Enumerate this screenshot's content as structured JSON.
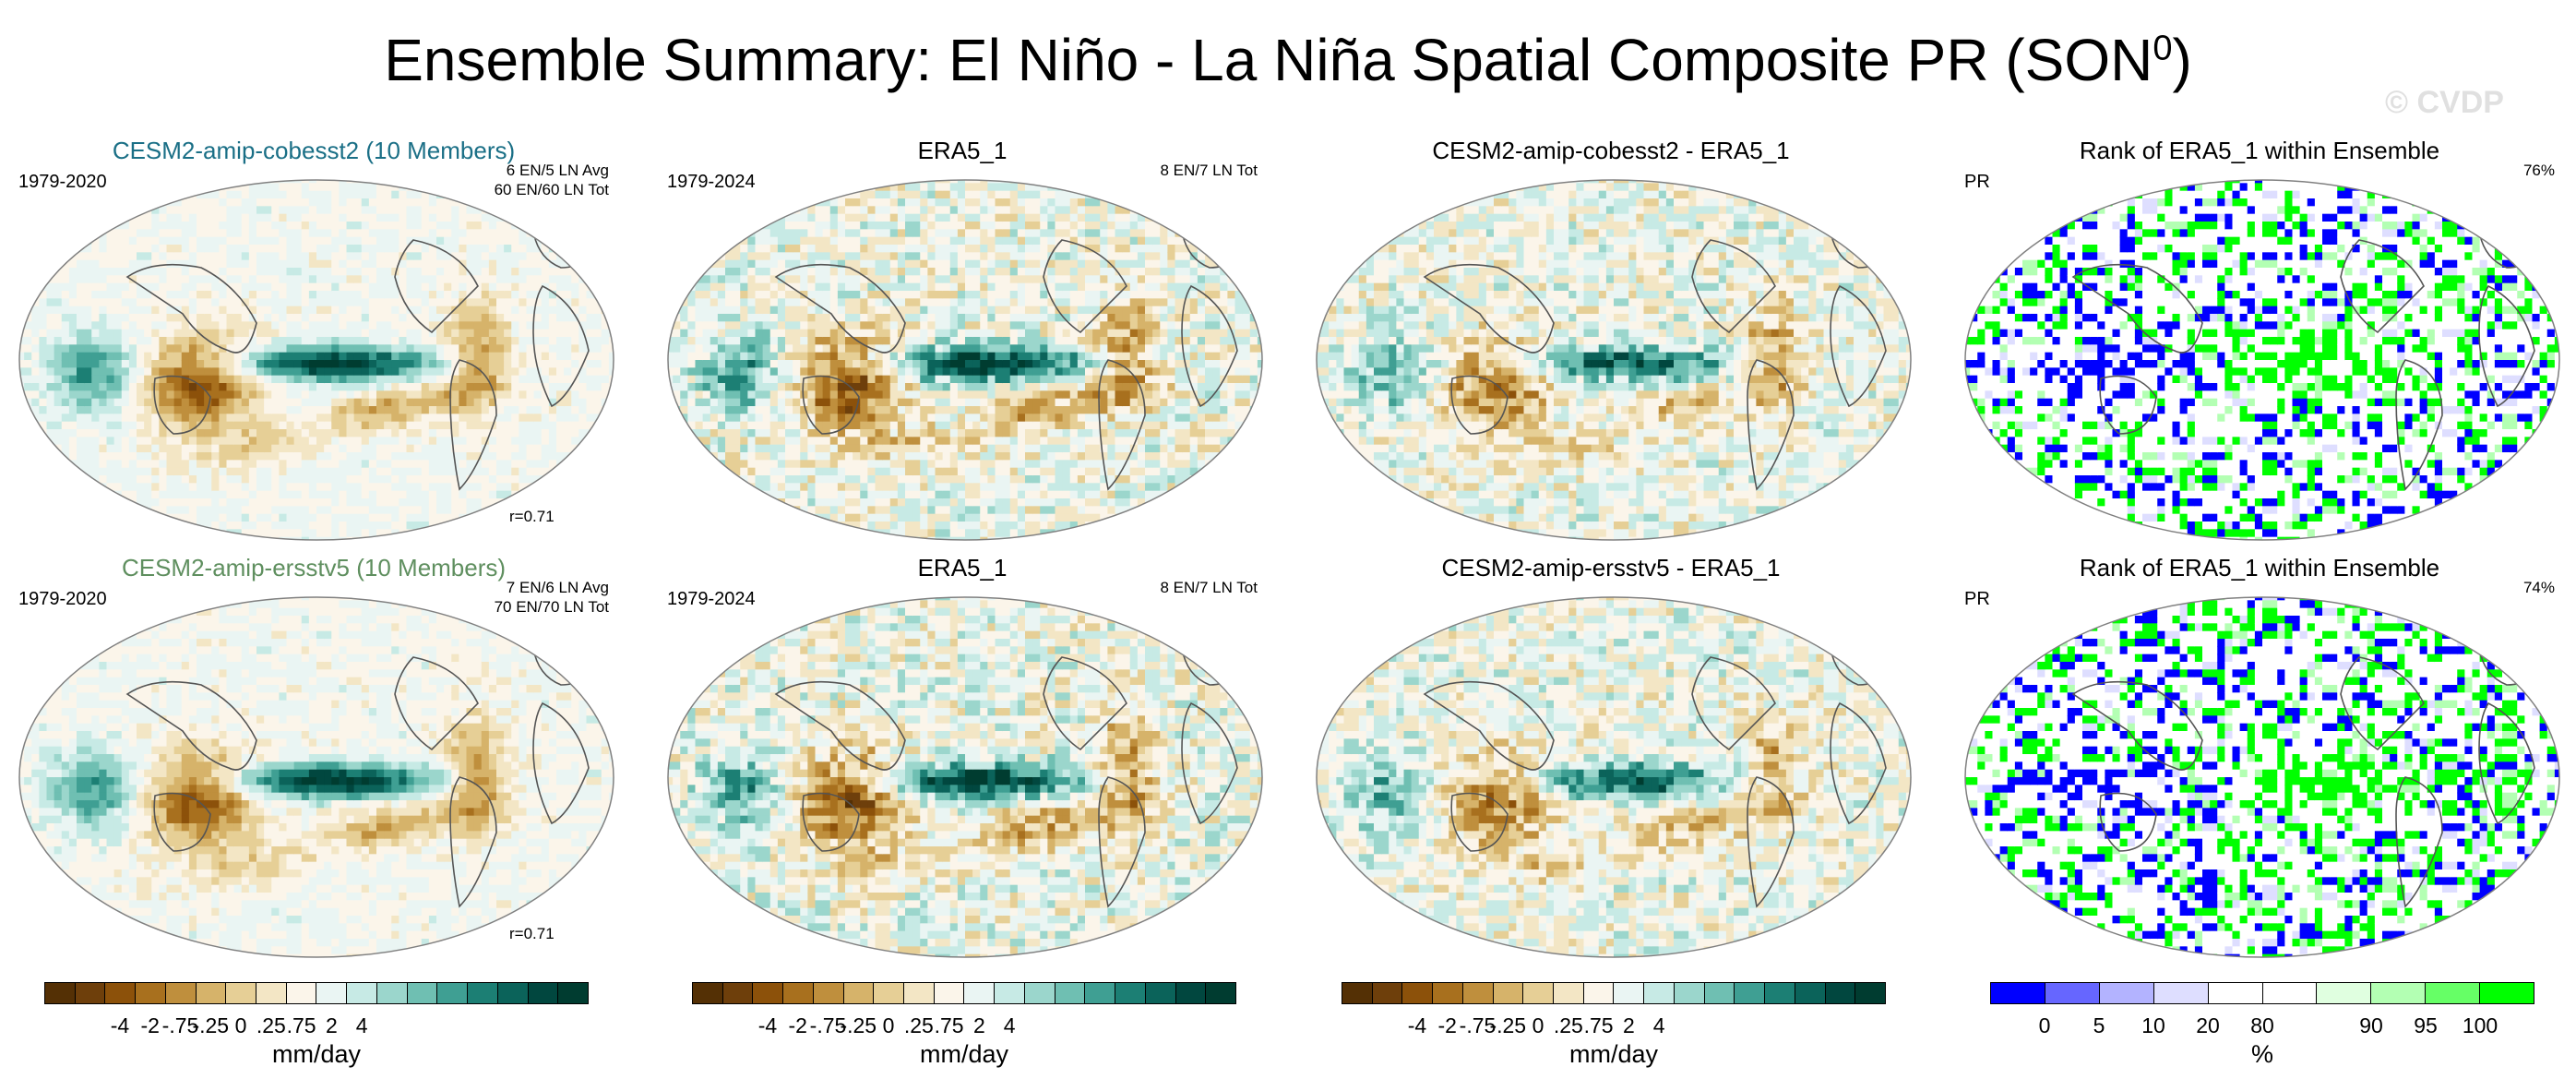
{
  "figure": {
    "title": "Ensemble Summary: El Niño - La Niña Spatial Composite PR (SON",
    "title_sup": "0",
    "title_close": ")",
    "watermark": "© CVDP"
  },
  "panels": [
    {
      "title": "CESM2-amip-cobesst2 (10 Members)",
      "title_color": "#1a6f86",
      "left_text": "1979-2020",
      "right_text": [
        "6 EN/5 LN Avg",
        "60 EN/60 LN Tot"
      ],
      "corr": "r=0.71",
      "kind": "ens"
    },
    {
      "title": "ERA5_1",
      "title_color": "#000000",
      "left_text": "1979-2024",
      "right_text": [
        "8 EN/7 LN Tot"
      ],
      "corr": "",
      "kind": "obs"
    },
    {
      "title": "CESM2-amip-cobesst2 - ERA5_1",
      "title_color": "#000000",
      "left_text": "",
      "right_text": [],
      "corr": "",
      "kind": "diff"
    },
    {
      "title": "Rank of ERA5_1 within Ensemble",
      "title_color": "#000000",
      "left_text": "PR",
      "right_text": [
        "76%"
      ],
      "corr": "",
      "kind": "rank"
    },
    {
      "title": "CESM2-amip-ersstv5 (10 Members)",
      "title_color": "#5f8f5f",
      "left_text": "1979-2020",
      "right_text": [
        "7 EN/6 LN Avg",
        "70 EN/70 LN Tot"
      ],
      "corr": "r=0.71",
      "kind": "ens"
    },
    {
      "title": "ERA5_1",
      "title_color": "#000000",
      "left_text": "1979-2024",
      "right_text": [
        "8 EN/7 LN Tot"
      ],
      "corr": "",
      "kind": "obs"
    },
    {
      "title": "CESM2-amip-ersstv5 - ERA5_1",
      "title_color": "#000000",
      "left_text": "",
      "right_text": [],
      "corr": "",
      "kind": "diff"
    },
    {
      "title": "Rank of ERA5_1 within Ensemble",
      "title_color": "#000000",
      "left_text": "PR",
      "right_text": [
        "74%"
      ],
      "corr": "",
      "kind": "rank"
    }
  ],
  "colorbars": [
    {
      "units": "mm/day",
      "ticks": [
        "-4",
        "-2",
        "-.75",
        "-.25",
        "0",
        ".25",
        ".75",
        "2",
        "4"
      ],
      "colors": [
        "#543005",
        "#6e3f0b",
        "#8c510a",
        "#a8701e",
        "#bf8f3d",
        "#d6b36a",
        "#e6cf96",
        "#f3e6c5",
        "#fbf5ea",
        "#eaf5f3",
        "#c7eae5",
        "#9bd6cc",
        "#6fbfb2",
        "#3f9f93",
        "#1c7f74",
        "#0b635a",
        "#01473f",
        "#003c30"
      ]
    },
    {
      "units": "mm/day",
      "ticks": [
        "-4",
        "-2",
        "-.75",
        "-.25",
        "0",
        ".25",
        ".75",
        "2",
        "4"
      ],
      "colors": [
        "#543005",
        "#6e3f0b",
        "#8c510a",
        "#a8701e",
        "#bf8f3d",
        "#d6b36a",
        "#e6cf96",
        "#f3e6c5",
        "#fbf5ea",
        "#eaf5f3",
        "#c7eae5",
        "#9bd6cc",
        "#6fbfb2",
        "#3f9f93",
        "#1c7f74",
        "#0b635a",
        "#01473f",
        "#003c30"
      ]
    },
    {
      "units": "mm/day",
      "ticks": [
        "-4",
        "-2",
        "-.75",
        "-.25",
        "0",
        ".25",
        ".75",
        "2",
        "4"
      ],
      "colors": [
        "#543005",
        "#6e3f0b",
        "#8c510a",
        "#a8701e",
        "#bf8f3d",
        "#d6b36a",
        "#e6cf96",
        "#f3e6c5",
        "#fbf5ea",
        "#eaf5f3",
        "#c7eae5",
        "#9bd6cc",
        "#6fbfb2",
        "#3f9f93",
        "#1c7f74",
        "#0b635a",
        "#01473f",
        "#003c30"
      ]
    },
    {
      "units": "%",
      "ticks": [
        "0",
        "5",
        "10",
        "20",
        "80",
        "90",
        "95",
        "100"
      ],
      "colors": [
        "#0000ff",
        "#6666ff",
        "#b3b3ff",
        "#dedeff",
        "#ffffff",
        "#ffffff",
        "#e0ffe0",
        "#b3ffb3",
        "#66ff66",
        "#00ff00"
      ]
    }
  ],
  "palette": {
    "ocean_edge": "#808080",
    "coast": "#555555",
    "wet": "#1c7f74",
    "dry": "#a8701e",
    "rank_low": "#0000ff",
    "rank_high": "#00ff00"
  }
}
